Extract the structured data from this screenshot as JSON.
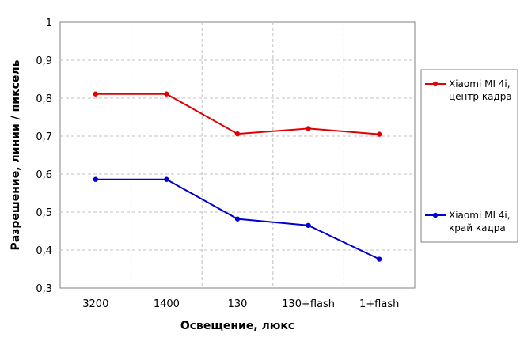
{
  "chart_data": {
    "type": "line",
    "title": "",
    "xlabel": "Освещение,  люкс",
    "ylabel": "Разрешение,  линии  / пиксель",
    "categories": [
      "3200",
      "1400",
      "130",
      "130+flash",
      "1+flash"
    ],
    "ylim": [
      0.3,
      1
    ],
    "yticks": [
      "0,3",
      "0,4",
      "0,5",
      "0,6",
      "0,7",
      "0,8",
      "0,9",
      "1"
    ],
    "grid": true,
    "legend_position": "right",
    "series": [
      {
        "name": "Xiaomi MI 4i, центр кадра",
        "legend_lines": [
          "Xiaomi MI 4i,",
          "центр кадра"
        ],
        "color": "#e00000",
        "values": [
          0.811,
          0.811,
          0.706,
          0.72,
          0.705
        ]
      },
      {
        "name": "Xiaomi MI 4i, край кадра",
        "legend_lines": [
          "Xiaomi MI 4i,",
          "край кадра"
        ],
        "color": "#0000d0",
        "values": [
          0.586,
          0.586,
          0.482,
          0.465,
          0.376
        ]
      }
    ]
  }
}
